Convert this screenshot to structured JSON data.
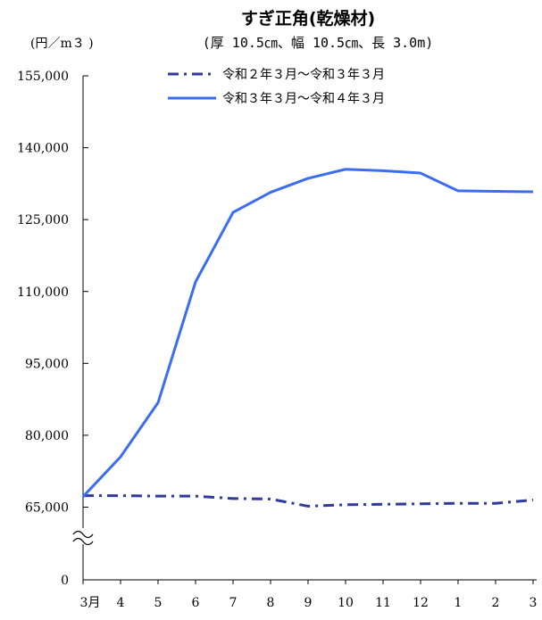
{
  "chart_data": {
    "type": "line",
    "title": "すぎ正角(乾燥材)",
    "subtitle": "(厚 10.5㎝、幅 10.5㎝、長 3.0m)",
    "unit_label": "(円／m３ )",
    "categories": [
      "3月",
      "4",
      "5",
      "6",
      "7",
      "8",
      "9",
      "10",
      "11",
      "12",
      "1",
      "2",
      "3"
    ],
    "y_ticks": [
      {
        "value": 155000,
        "label": "155,000"
      },
      {
        "value": 140000,
        "label": "140,000"
      },
      {
        "value": 125000,
        "label": "125,000"
      },
      {
        "value": 110000,
        "label": "110,000"
      },
      {
        "value": 95000,
        "label": "95,000"
      },
      {
        "value": 80000,
        "label": "80,000"
      },
      {
        "value": 65000,
        "label": "65,000"
      },
      {
        "value": 0,
        "label": "0"
      }
    ],
    "ylim": [
      0,
      155000
    ],
    "axis_break": true,
    "grid": false,
    "legend_position": "top-right",
    "series": [
      {
        "name": "令和２年３月～令和３年３月",
        "color": "#2e3a9c",
        "style": "dash-dot",
        "values": [
          67400,
          67400,
          67300,
          67300,
          66800,
          66700,
          65200,
          65500,
          65600,
          65700,
          65800,
          65800,
          66500
        ]
      },
      {
        "name": "令和３年３月～令和４年３月",
        "color": "#3b6df2",
        "style": "solid",
        "values": [
          67200,
          75500,
          86800,
          112000,
          126500,
          130700,
          133600,
          135500,
          135200,
          134700,
          131000,
          130900,
          130800
        ]
      }
    ]
  }
}
